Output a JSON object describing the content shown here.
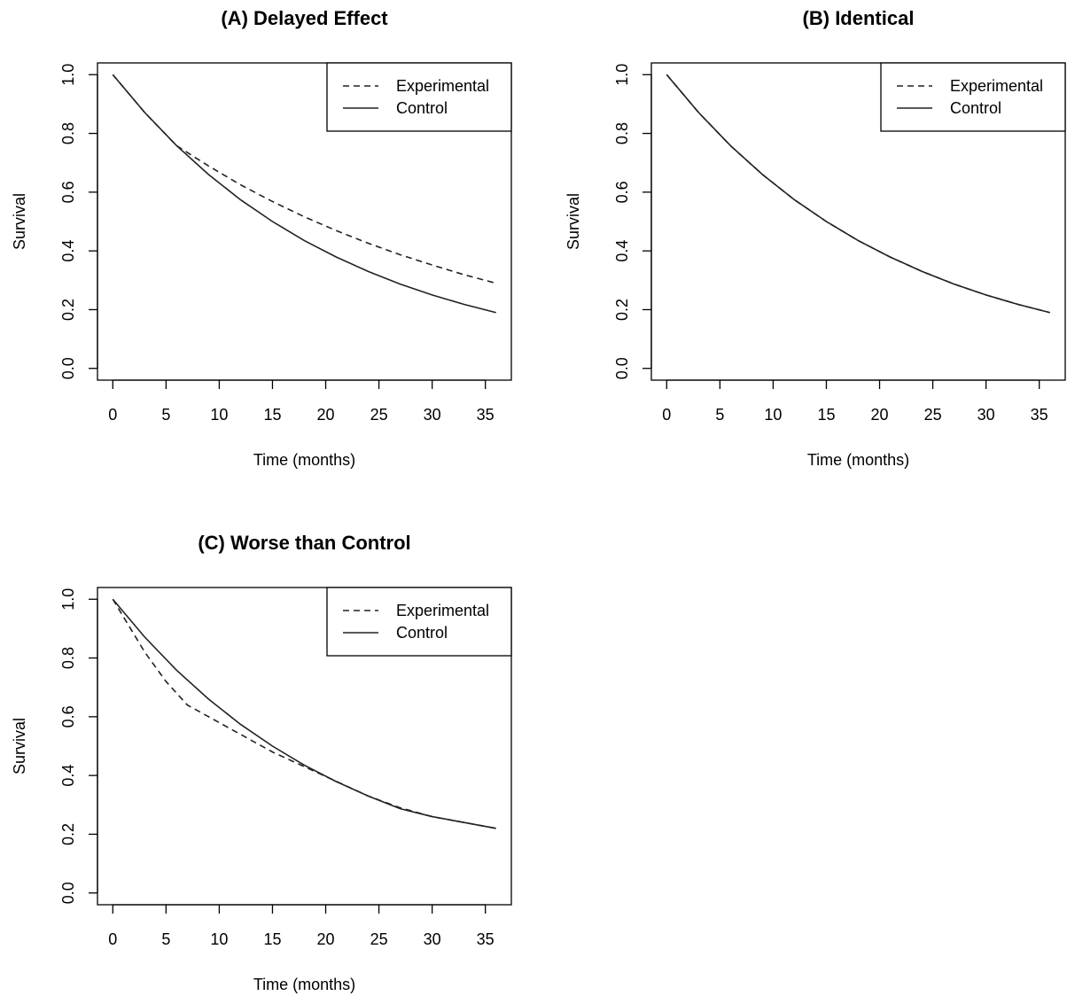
{
  "chart_data": [
    {
      "type": "line",
      "title": "(A) Delayed Effect",
      "xlabel": "Time (months)",
      "ylabel": "Survival",
      "xlim": [
        0,
        36
      ],
      "ylim": [
        0,
        1
      ],
      "x_ticks": [
        0,
        5,
        10,
        15,
        20,
        25,
        30,
        35
      ],
      "y_ticks": [
        "0.0",
        "0.2",
        "0.4",
        "0.6",
        "0.8",
        "1.0"
      ],
      "legend": {
        "position": "top-right",
        "entries": [
          "Experimental",
          "Control"
        ]
      },
      "series": [
        {
          "name": "Experimental",
          "style": "dashed",
          "x": [
            0,
            3,
            6,
            9,
            12,
            15,
            18,
            21,
            24,
            27,
            30,
            33,
            36
          ],
          "y": [
            1.0,
            0.871,
            0.758,
            0.689,
            0.625,
            0.568,
            0.516,
            0.469,
            0.426,
            0.387,
            0.352,
            0.319,
            0.29
          ]
        },
        {
          "name": "Control",
          "style": "solid",
          "x": [
            0,
            3,
            6,
            9,
            12,
            15,
            18,
            21,
            24,
            27,
            30,
            33,
            36
          ],
          "y": [
            1.0,
            0.871,
            0.758,
            0.66,
            0.574,
            0.5,
            0.435,
            0.379,
            0.33,
            0.287,
            0.25,
            0.218,
            0.19
          ]
        }
      ]
    },
    {
      "type": "line",
      "title": "(B) Identical",
      "xlabel": "Time (months)",
      "ylabel": "Survival",
      "xlim": [
        0,
        36
      ],
      "ylim": [
        0,
        1
      ],
      "x_ticks": [
        0,
        5,
        10,
        15,
        20,
        25,
        30,
        35
      ],
      "y_ticks": [
        "0.0",
        "0.2",
        "0.4",
        "0.6",
        "0.8",
        "1.0"
      ],
      "legend": {
        "position": "top-right",
        "entries": [
          "Experimental",
          "Control"
        ]
      },
      "series": [
        {
          "name": "Experimental",
          "style": "dashed",
          "x": [
            0,
            3,
            6,
            9,
            12,
            15,
            18,
            21,
            24,
            27,
            30,
            33,
            36
          ],
          "y": [
            1.0,
            0.871,
            0.758,
            0.66,
            0.574,
            0.5,
            0.435,
            0.379,
            0.33,
            0.287,
            0.25,
            0.218,
            0.19
          ]
        },
        {
          "name": "Control",
          "style": "solid",
          "x": [
            0,
            3,
            6,
            9,
            12,
            15,
            18,
            21,
            24,
            27,
            30,
            33,
            36
          ],
          "y": [
            1.0,
            0.871,
            0.758,
            0.66,
            0.574,
            0.5,
            0.435,
            0.379,
            0.33,
            0.287,
            0.25,
            0.218,
            0.19
          ]
        }
      ]
    },
    {
      "type": "line",
      "title": "(C) Worse than Control",
      "xlabel": "Time (months)",
      "ylabel": "Survival",
      "xlim": [
        0,
        36
      ],
      "ylim": [
        0,
        1
      ],
      "x_ticks": [
        0,
        5,
        10,
        15,
        20,
        25,
        30,
        35
      ],
      "y_ticks": [
        "0.0",
        "0.2",
        "0.4",
        "0.6",
        "0.8",
        "1.0"
      ],
      "legend": {
        "position": "top-right",
        "entries": [
          "Experimental",
          "Control"
        ]
      },
      "series": [
        {
          "name": "Experimental",
          "style": "dashed",
          "x": [
            0,
            3,
            5,
            7,
            9,
            12,
            15,
            18,
            21,
            24,
            27,
            30,
            33,
            36
          ],
          "y": [
            1.0,
            0.82,
            0.72,
            0.64,
            0.6,
            0.54,
            0.48,
            0.43,
            0.38,
            0.33,
            0.29,
            0.26,
            0.24,
            0.22
          ]
        },
        {
          "name": "Control",
          "style": "solid",
          "x": [
            0,
            3,
            6,
            9,
            12,
            15,
            18,
            21,
            24,
            27,
            30,
            33,
            36
          ],
          "y": [
            1.0,
            0.871,
            0.758,
            0.66,
            0.574,
            0.5,
            0.435,
            0.379,
            0.33,
            0.287,
            0.26,
            0.24,
            0.22
          ]
        }
      ]
    }
  ]
}
